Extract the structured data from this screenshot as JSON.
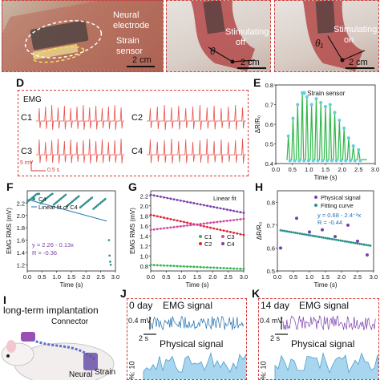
{
  "photo_a": {
    "labels": [
      "Neural",
      "electrode",
      "Strain",
      "sensor"
    ],
    "scale": "2 cm"
  },
  "photo_b": {
    "labels": [
      "Stimulating",
      "off"
    ],
    "angle": "θ",
    "scale": "2 cm"
  },
  "photo_c": {
    "labels": [
      "Stimulating",
      "on"
    ],
    "angle": "θ₁",
    "scale": "2 cm"
  },
  "panel_d": {
    "letter": "D",
    "title": "EMG",
    "channels": [
      "C1",
      "C2",
      "C3",
      "C4"
    ],
    "scalebar_v": "5 mV",
    "scalebar_h": "0.5 s"
  },
  "chart_e": {
    "letter": "E",
    "legend": "Strain sensor",
    "ylabel": "ΔR/R₀",
    "xlabel": "Time (s)",
    "yticks": [
      "0.4",
      "0.5",
      "0.6",
      "0.7",
      "0.8"
    ],
    "xticks": [
      "0.0",
      "0.5",
      "1.0",
      "1.5",
      "2.0",
      "2.5",
      "3.0"
    ]
  },
  "chart_f": {
    "letter": "F",
    "legend": [
      "C4",
      "Linear fit of C4"
    ],
    "eq": "y = 2.26 - 0.13x",
    "r": "R = -0.36",
    "ylabel": "EMG RMS (mV)",
    "xlabel": "Time (s)",
    "yticks": [
      "1.2",
      "1.4",
      "1.6",
      "1.8",
      "2.0",
      "2.2"
    ],
    "xticks": [
      "0.0",
      "0.5",
      "1.0",
      "1.5",
      "2.0",
      "2.5",
      "3.0"
    ]
  },
  "chart_g": {
    "letter": "G",
    "legend_title": "Linear fit",
    "legend": [
      "C1",
      "C2",
      "C3",
      "C4"
    ],
    "ylabel": "EMG RMS (mV)",
    "xlabel": "Time (s)",
    "yticks": [
      "0.8",
      "1.0",
      "1.2",
      "1.4",
      "1.6",
      "1.8",
      "2.0",
      "2.2"
    ],
    "xticks": [
      "0.0",
      "0.5",
      "1.0",
      "1.5",
      "2.0",
      "2.5",
      "3.0"
    ]
  },
  "chart_h": {
    "letter": "H",
    "legend": [
      "Physical signal",
      "Fitting curve"
    ],
    "eq": "y = 0.68 - 2.4⁻²x",
    "r": "R = -0.44",
    "ylabel": "ΔR/R₀",
    "xlabel": "Time (s)",
    "yticks": [
      "0.5",
      "0.6",
      "0.7",
      "0.8"
    ],
    "xticks": [
      "0.0",
      "0.5",
      "1.0",
      "1.5",
      "2.0",
      "2.5",
      "3.0"
    ]
  },
  "panel_i": {
    "letter": "I",
    "title": "long-term implantation",
    "connector": "Connector",
    "neural": "Neural",
    "strain": "Strain"
  },
  "panel_j": {
    "letter": "J",
    "day": "0 day",
    "emg": "EMG signal",
    "physical": "Physical signal",
    "scale_v": "0.4 mV",
    "scale_h": "2 s",
    "ylabel": "%: 10"
  },
  "panel_k": {
    "letter": "K",
    "day": "14 day",
    "emg": "EMG signal",
    "physical": "Physical signal",
    "scale_v": "0.4 mV",
    "scale_h": "2 s",
    "ylabel": "%: 10"
  },
  "colors": {
    "emg": "#e8504a",
    "green": "#2fb84a",
    "cyan": "#5fd0e0",
    "blue": "#1f6fb0",
    "purple": "#7a3fae",
    "pink": "#d14aa0",
    "red": "#d9283a",
    "teal": "#2a8f8a",
    "fillblue": "#a9d6ef",
    "frame": "#d23a3a"
  },
  "chart_data": [
    {
      "type": "line",
      "panel": "E",
      "title": "",
      "legend": [
        "Strain sensor"
      ],
      "xlabel": "Time (s)",
      "ylabel": "ΔR/R₀",
      "ylim": [
        0.4,
        0.8
      ],
      "xlim": [
        0.0,
        3.0
      ],
      "peaks_x": [
        0.38,
        0.52,
        0.66,
        0.8,
        0.94,
        1.08,
        1.22,
        1.36,
        1.5,
        1.64,
        1.78,
        1.92,
        2.06,
        2.2,
        2.34,
        2.5
      ],
      "peaks_y": [
        0.54,
        0.63,
        0.7,
        0.76,
        0.74,
        0.7,
        0.73,
        0.71,
        0.69,
        0.7,
        0.66,
        0.62,
        0.58,
        0.53,
        0.49,
        0.47
      ],
      "baseline": 0.42
    },
    {
      "type": "scatter",
      "panel": "F",
      "title": "",
      "legend": [
        "C4",
        "Linear fit of C4"
      ],
      "xlabel": "Time (s)",
      "ylabel": "EMG RMS (mV)",
      "ylim": [
        1.1,
        2.4
      ],
      "xlim": [
        0.0,
        3.0
      ],
      "fit": {
        "intercept": 2.26,
        "slope": -0.13
      }
    },
    {
      "type": "scatter",
      "panel": "G",
      "title": "",
      "legend": [
        "C1",
        "C2",
        "C3",
        "C4"
      ],
      "xlabel": "Time (s)",
      "ylabel": "EMG RMS (mV)",
      "ylim": [
        0.7,
        2.3
      ],
      "xlim": [
        0.0,
        3.0
      ],
      "series": [
        {
          "name": "C1",
          "start": 0.82,
          "end": 0.74
        },
        {
          "name": "C2",
          "start": 1.82,
          "end": 1.42
        },
        {
          "name": "C3",
          "start": 1.52,
          "end": 1.74
        },
        {
          "name": "C4",
          "start": 2.22,
          "end": 1.86
        }
      ]
    },
    {
      "type": "scatter",
      "panel": "H",
      "title": "",
      "legend": [
        "Physical signal",
        "Fitting curve"
      ],
      "xlabel": "Time (s)",
      "ylabel": "ΔR/R₀",
      "ylim": [
        0.5,
        0.85
      ],
      "xlim": [
        0.0,
        3.0
      ],
      "x": [
        0.1,
        0.6,
        1.0,
        1.4,
        1.8,
        2.2,
        2.5,
        2.8
      ],
      "y": [
        0.6,
        0.73,
        0.67,
        0.68,
        0.65,
        0.7,
        0.63,
        0.57
      ],
      "fit": {
        "intercept": 0.68,
        "slope": -0.024
      }
    }
  ]
}
